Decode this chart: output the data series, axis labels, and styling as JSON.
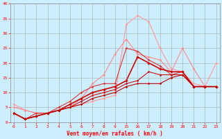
{
  "xlabel": "Vent moyen/en rafales ( km/h )",
  "background_color": "#cceeff",
  "grid_color": "#aabbbb",
  "x_labels": [
    "0",
    "1",
    "2",
    "3",
    "4",
    "5",
    "6",
    "7",
    "8",
    "9",
    "15",
    "16",
    "17",
    "18",
    "19",
    "20",
    "21",
    "22",
    "23"
  ],
  "ylim": [
    0,
    40
  ],
  "yticks": [
    0,
    5,
    10,
    15,
    20,
    25,
    30,
    35,
    40
  ],
  "series": [
    {
      "y": [
        6,
        4,
        3,
        3,
        4,
        5,
        6,
        7,
        8,
        9,
        33,
        36,
        34,
        25,
        18,
        17,
        13,
        12,
        20
      ],
      "color": "#ff9999",
      "linewidth": 0.8,
      "markersize": 1.8
    },
    {
      "y": [
        5,
        4,
        3,
        3,
        4,
        5,
        8,
        13,
        16,
        23,
        28,
        23,
        22,
        21,
        17,
        25,
        18,
        12,
        12
      ],
      "color": "#ff8888",
      "linewidth": 0.8,
      "markersize": 1.8
    },
    {
      "y": [
        3,
        1,
        3,
        3,
        5,
        7,
        10,
        12,
        13,
        13,
        25,
        24,
        21,
        19,
        16,
        17,
        12,
        12,
        12
      ],
      "color": "#dd3333",
      "linewidth": 0.8,
      "markersize": 1.8
    },
    {
      "y": [
        3,
        1,
        2,
        3,
        4,
        6,
        8,
        10,
        11,
        12,
        14,
        22,
        20,
        18,
        17,
        17,
        12,
        12,
        12
      ],
      "color": "#cc0000",
      "linewidth": 1.2,
      "markersize": 2.2
    },
    {
      "y": [
        3,
        1,
        2,
        3,
        4,
        5,
        7,
        9,
        10,
        11,
        13,
        14,
        17,
        16,
        16,
        16,
        12,
        12,
        12
      ],
      "color": "#cc1111",
      "linewidth": 0.8,
      "markersize": 1.8
    },
    {
      "y": [
        3,
        1,
        2,
        3,
        4,
        5,
        6,
        8,
        9,
        10,
        12,
        13,
        13,
        13,
        15,
        16,
        12,
        12,
        12
      ],
      "color": "#bb0000",
      "linewidth": 0.8,
      "markersize": 1.8
    }
  ]
}
